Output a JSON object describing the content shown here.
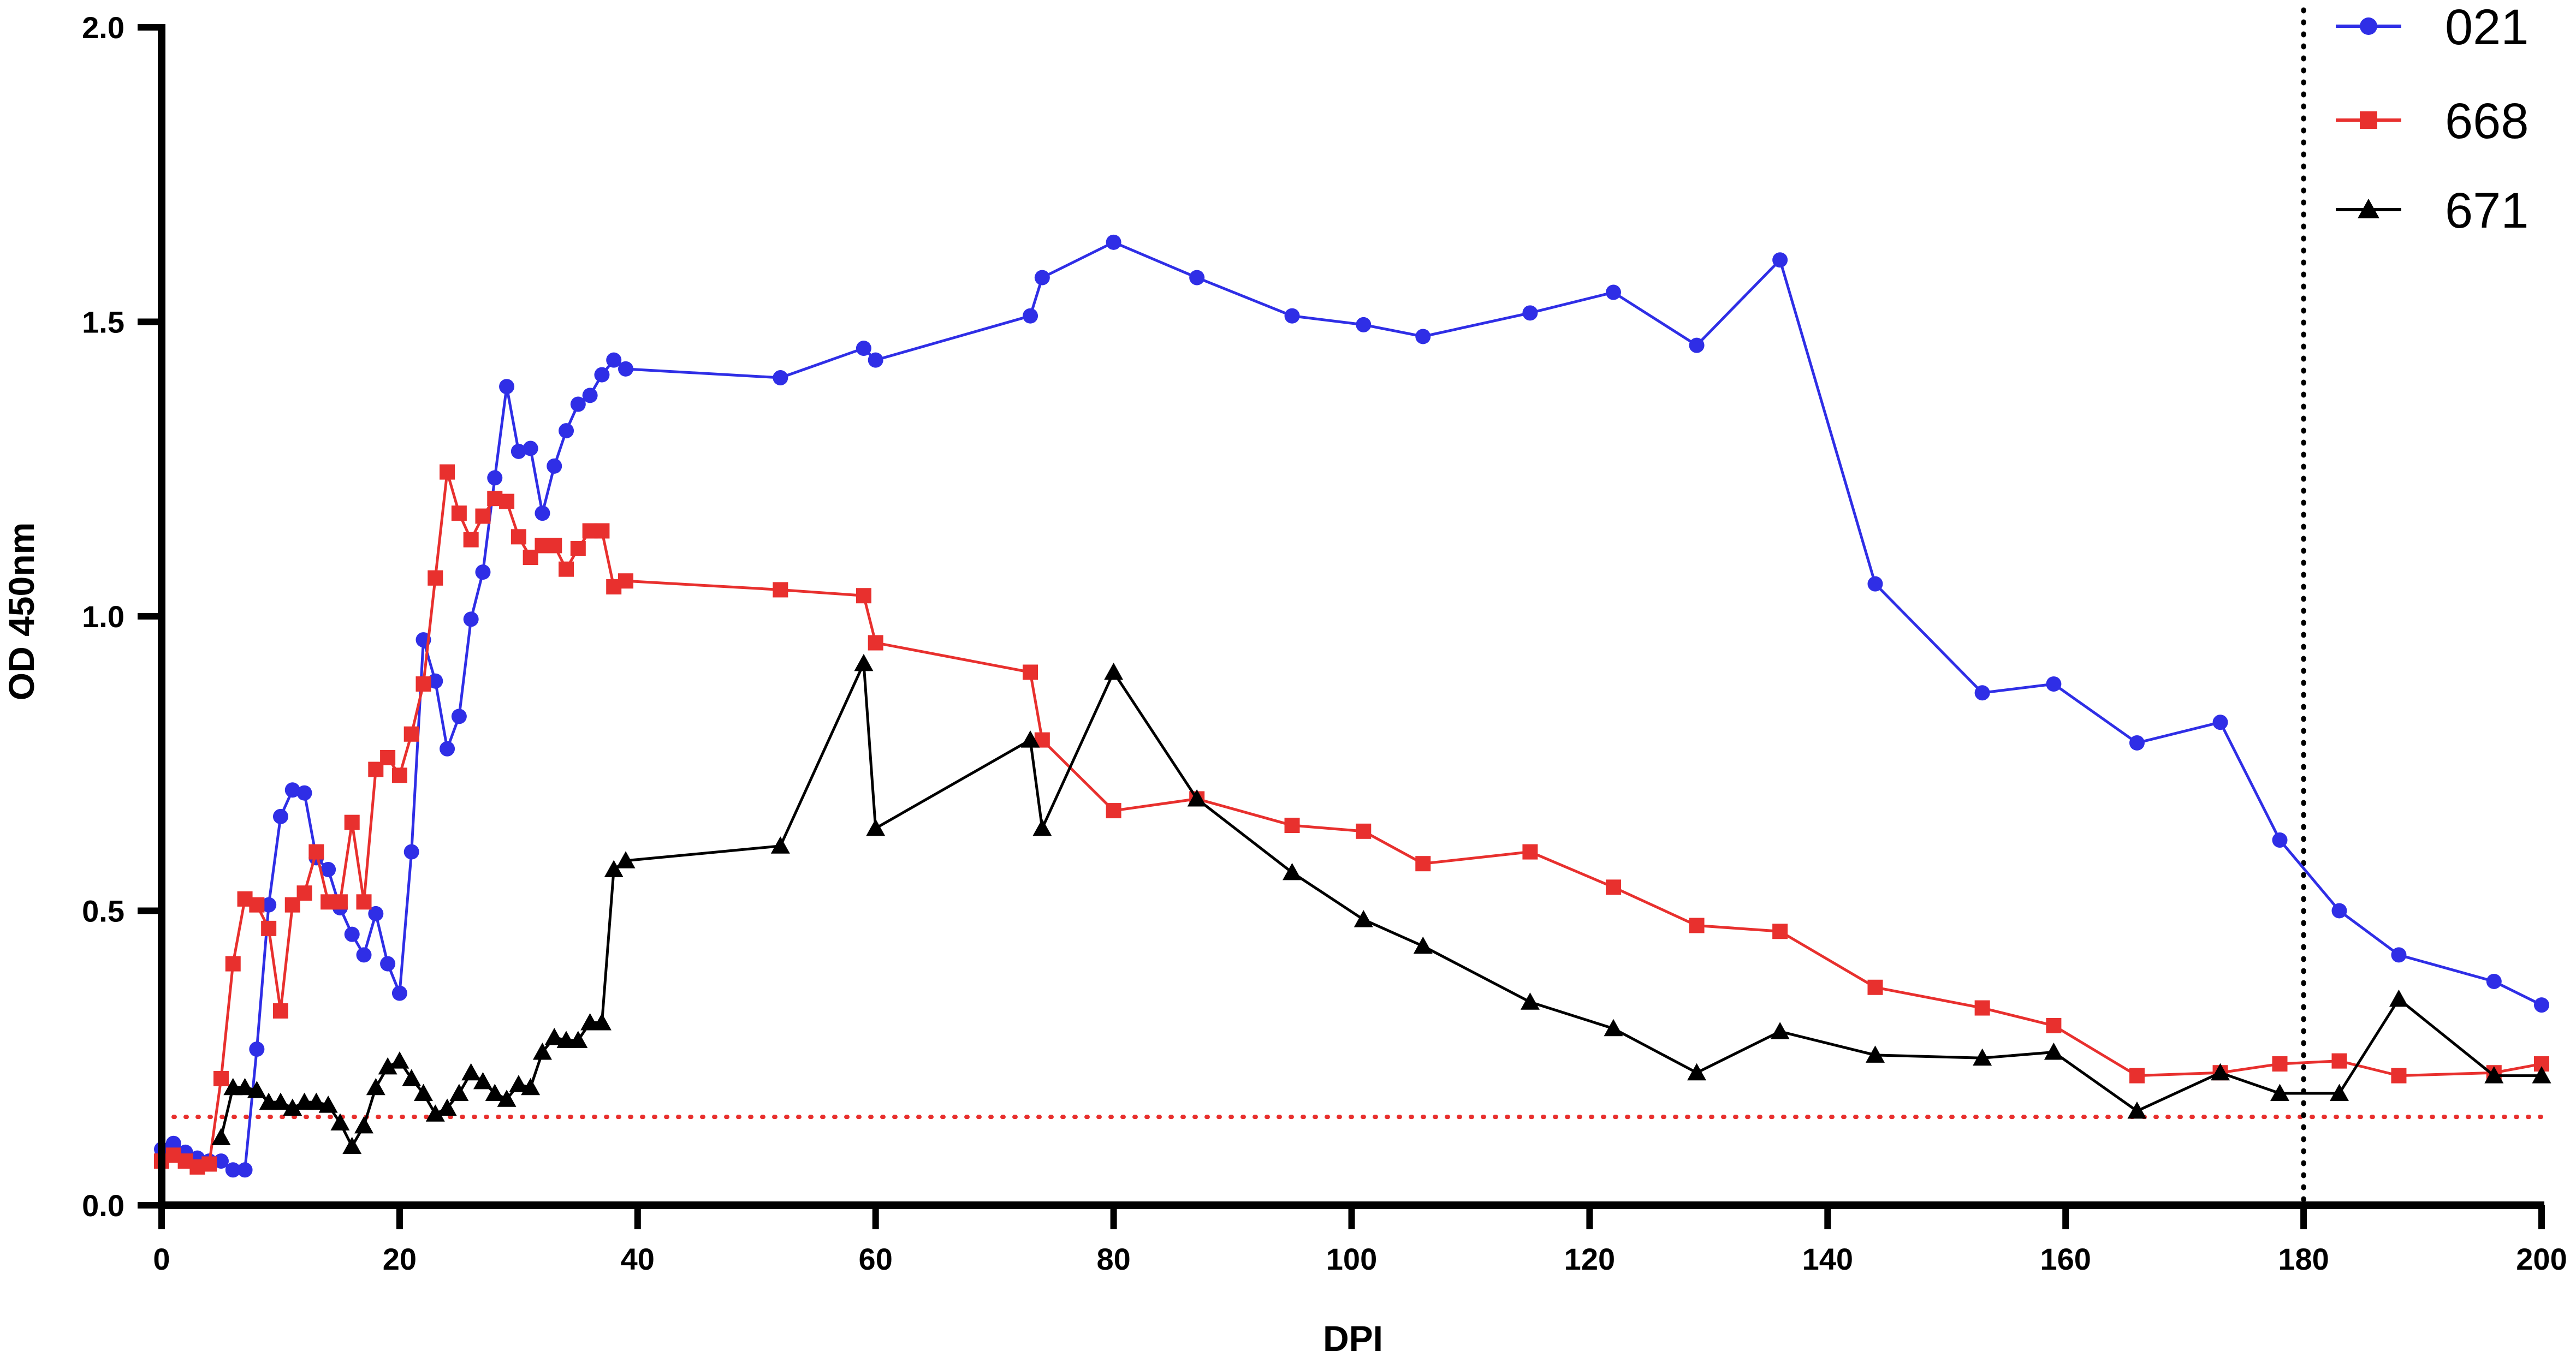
{
  "chart_data": {
    "type": "line",
    "title": "",
    "xlabel": "DPI",
    "ylabel": "OD 450nm",
    "xlim": [
      0,
      200
    ],
    "ylim": [
      0,
      2
    ],
    "x_ticks": [
      0,
      20,
      40,
      60,
      80,
      100,
      120,
      140,
      160,
      180,
      200
    ],
    "x_tick_labels": [
      "0",
      "20",
      "40",
      "60",
      "80",
      "100",
      "120",
      "140",
      "160",
      "180",
      "200"
    ],
    "y_ticks": [
      0,
      0.5,
      1,
      1.5,
      2
    ],
    "y_tick_labels": [
      "0.0",
      "0.5",
      "1.0",
      "1.5",
      "2.0"
    ],
    "grid": false,
    "legend_position": "top-right",
    "reference_lines": [
      {
        "orientation": "horizontal",
        "value": 0.15,
        "color": "#e8302e",
        "style": "dotted"
      },
      {
        "orientation": "vertical",
        "value": 180,
        "color": "#000000",
        "style": "dotted"
      }
    ],
    "series": [
      {
        "name": "021",
        "color": "#2f2ee6",
        "marker": "circle",
        "x": [
          0,
          1,
          2,
          3,
          4,
          5,
          6,
          7,
          8,
          9,
          10,
          11,
          12,
          13,
          14,
          15,
          16,
          17,
          18,
          19,
          20,
          21,
          22,
          23,
          24,
          25,
          26,
          27,
          28,
          29,
          30,
          31,
          32,
          33,
          34,
          35,
          36,
          37,
          38,
          39,
          52,
          59,
          60,
          73,
          74,
          80,
          87,
          95,
          101,
          106,
          115,
          122,
          129,
          136,
          144,
          153,
          159,
          166,
          173,
          178,
          183,
          188,
          196,
          200
        ],
        "y": [
          0.095,
          0.105,
          0.09,
          0.08,
          0.075,
          0.075,
          0.06,
          0.06,
          0.265,
          0.51,
          0.66,
          0.705,
          0.7,
          0.59,
          0.57,
          0.505,
          0.46,
          0.425,
          0.495,
          0.41,
          0.36,
          0.6,
          0.96,
          0.89,
          0.775,
          0.83,
          0.995,
          1.075,
          1.235,
          1.39,
          1.28,
          1.285,
          1.175,
          1.255,
          1.315,
          1.36,
          1.375,
          1.41,
          1.435,
          1.42,
          1.405,
          1.455,
          1.435,
          1.51,
          1.575,
          1.635,
          1.575,
          1.51,
          1.495,
          1.475,
          1.515,
          1.55,
          1.46,
          1.605,
          1.055,
          0.87,
          0.885,
          0.785,
          0.82,
          0.62,
          0.5,
          0.425,
          0.38,
          0.34
        ]
      },
      {
        "name": "668",
        "color": "#e8302e",
        "marker": "square",
        "x": [
          0,
          1,
          2,
          3,
          4,
          5,
          6,
          7,
          8,
          9,
          10,
          11,
          12,
          13,
          14,
          15,
          16,
          17,
          18,
          19,
          20,
          21,
          22,
          23,
          24,
          25,
          26,
          27,
          28,
          29,
          30,
          31,
          32,
          33,
          34,
          35,
          36,
          37,
          38,
          39,
          52,
          59,
          60,
          73,
          74,
          80,
          87,
          95,
          101,
          106,
          115,
          122,
          129,
          136,
          144,
          153,
          159,
          166,
          173,
          178,
          183,
          188,
          196,
          200
        ],
        "y": [
          0.075,
          0.085,
          0.075,
          0.065,
          0.07,
          0.215,
          0.41,
          0.52,
          0.51,
          0.47,
          0.33,
          0.51,
          0.53,
          0.6,
          0.515,
          0.515,
          0.65,
          0.515,
          0.74,
          0.76,
          0.73,
          0.8,
          0.885,
          1.065,
          1.245,
          1.175,
          1.13,
          1.17,
          1.2,
          1.195,
          1.135,
          1.1,
          1.12,
          1.12,
          1.08,
          1.115,
          1.145,
          1.145,
          1.05,
          1.06,
          1.045,
          1.035,
          0.955,
          0.905,
          0.79,
          0.67,
          0.69,
          0.645,
          0.635,
          0.58,
          0.6,
          0.54,
          0.475,
          0.465,
          0.37,
          0.335,
          0.305,
          0.22,
          0.225,
          0.24,
          0.245,
          0.22,
          0.225,
          0.24
        ]
      },
      {
        "name": "671",
        "color": "#000000",
        "marker": "triangle",
        "x": [
          5,
          6,
          7,
          8,
          9,
          10,
          11,
          12,
          13,
          14,
          15,
          16,
          17,
          18,
          19,
          20,
          21,
          22,
          23,
          24,
          25,
          26,
          27,
          28,
          29,
          30,
          31,
          32,
          33,
          34,
          35,
          36,
          37,
          38,
          39,
          52,
          59,
          60,
          73,
          74,
          80,
          87,
          95,
          101,
          106,
          115,
          122,
          129,
          136,
          144,
          153,
          159,
          166,
          173,
          178,
          183,
          188,
          196,
          200
        ],
        "y": [
          0.115,
          0.2,
          0.2,
          0.195,
          0.175,
          0.175,
          0.165,
          0.175,
          0.175,
          0.17,
          0.14,
          0.1,
          0.135,
          0.2,
          0.235,
          0.245,
          0.215,
          0.19,
          0.155,
          0.165,
          0.19,
          0.225,
          0.21,
          0.19,
          0.18,
          0.205,
          0.2,
          0.26,
          0.285,
          0.28,
          0.28,
          0.31,
          0.31,
          0.57,
          0.585,
          0.61,
          0.92,
          0.64,
          0.79,
          0.64,
          0.905,
          0.69,
          0.565,
          0.485,
          0.44,
          0.345,
          0.3,
          0.225,
          0.295,
          0.255,
          0.25,
          0.26,
          0.16,
          0.225,
          0.19,
          0.19,
          0.35,
          0.22,
          0.22
        ]
      }
    ]
  }
}
